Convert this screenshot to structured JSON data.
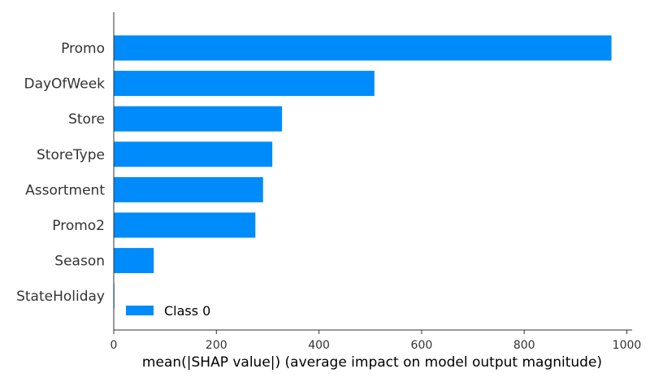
{
  "chart_data": {
    "type": "bar",
    "orientation": "horizontal",
    "title": "",
    "xlabel": "mean(|SHAP value|) (average impact on model output magnitude)",
    "ylabel": "",
    "xlim": [
      0,
      1010
    ],
    "xticks": [
      0,
      200,
      400,
      600,
      800,
      1000
    ],
    "categories": [
      "Promo",
      "DayOfWeek",
      "Store",
      "StoreType",
      "Assortment",
      "Promo2",
      "Season",
      "StateHoliday"
    ],
    "series": [
      {
        "name": "Class 0",
        "color": "#008bfb",
        "values": [
          970,
          508,
          328,
          309,
          291,
          276,
          78,
          1
        ]
      }
    ],
    "legend": {
      "position": "bottom-left-inside",
      "entries": [
        "Class 0"
      ]
    },
    "grid": false
  }
}
